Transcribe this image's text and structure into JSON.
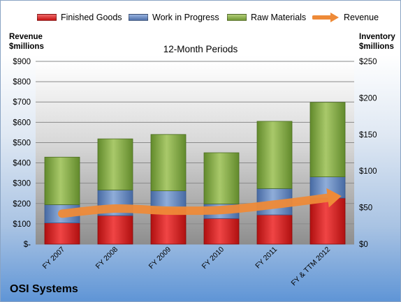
{
  "chart_data": {
    "type": "bar",
    "stacked": true,
    "subtitle": "12-Month Periods",
    "categories": [
      "FY 2007",
      "FY 2008",
      "FY 2009",
      "FY 2010",
      "FY 2011",
      "FY & TTM 2012"
    ],
    "series": [
      {
        "name": "Finished Goods",
        "axis": "right",
        "color": "#d61f1f",
        "values": [
          29,
          39,
          49,
          35,
          40,
          63
        ]
      },
      {
        "name": "Work in Progress",
        "axis": "right",
        "color": "#5b7fbc",
        "values": [
          25,
          35,
          24,
          20,
          36,
          29
        ]
      },
      {
        "name": "Raw Materials",
        "axis": "right",
        "color": "#7fa33e",
        "values": [
          65,
          70,
          77,
          70,
          92,
          102
        ]
      },
      {
        "name": "Revenue",
        "type": "line",
        "axis": "left",
        "color": "#ee8a38",
        "values": [
          150,
          175,
          165,
          168,
          195,
          228
        ]
      }
    ],
    "left_axis": {
      "title": "Revenue\n$millions",
      "min": 0,
      "max": 900,
      "step": 100,
      "tick_labels": [
        "$-",
        "$100",
        "$200",
        "$300",
        "$400",
        "$500",
        "$600",
        "$700",
        "$800",
        "$900"
      ]
    },
    "right_axis": {
      "title": "Inventory\n$millions",
      "min": 0,
      "max": 250,
      "step": 50,
      "tick_labels": [
        "$0",
        "$50",
        "$100",
        "$150",
        "$200",
        "$250"
      ]
    },
    "legend_position": "top",
    "grid": true
  },
  "company_name": "OSI Systems"
}
